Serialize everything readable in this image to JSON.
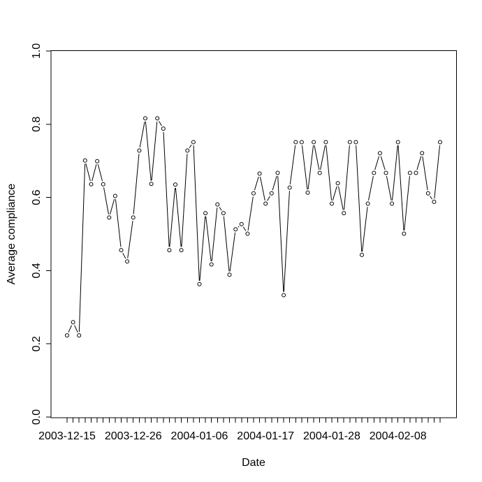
{
  "figure": {
    "background": "#ffffff",
    "foreground": "#000000",
    "title": ""
  },
  "chart_data": {
    "type": "line",
    "marker": "open-circle",
    "line_style": "segments-with-gaps-at-points",
    "title": "",
    "xlabel": "Date",
    "ylabel": "Average compliance",
    "grid": false,
    "legend": "none",
    "ylim": [
      0.0,
      1.0
    ],
    "yticks": [
      0.0,
      0.2,
      0.4,
      0.6,
      0.8,
      1.0
    ],
    "ytick_labels": [
      "0.0",
      "0.2",
      "0.4",
      "0.6",
      "0.8",
      "1.0"
    ],
    "x": [
      "2003-12-15",
      "2003-12-16",
      "2003-12-17",
      "2003-12-18",
      "2003-12-19",
      "2003-12-20",
      "2003-12-21",
      "2003-12-22",
      "2003-12-23",
      "2003-12-24",
      "2003-12-25",
      "2003-12-26",
      "2003-12-27",
      "2003-12-28",
      "2003-12-29",
      "2003-12-30",
      "2003-12-31",
      "2004-01-01",
      "2004-01-02",
      "2004-01-03",
      "2004-01-04",
      "2004-01-05",
      "2004-01-06",
      "2004-01-07",
      "2004-01-08",
      "2004-01-09",
      "2004-01-10",
      "2004-01-11",
      "2004-01-12",
      "2004-01-13",
      "2004-01-14",
      "2004-01-15",
      "2004-01-16",
      "2004-01-17",
      "2004-01-18",
      "2004-01-19",
      "2004-01-20",
      "2004-01-21",
      "2004-01-22",
      "2004-01-23",
      "2004-01-24",
      "2004-01-25",
      "2004-01-26",
      "2004-01-27",
      "2004-01-28",
      "2004-01-29",
      "2004-01-30",
      "2004-01-31",
      "2004-02-01",
      "2004-02-02",
      "2004-02-03",
      "2004-02-04",
      "2004-02-05",
      "2004-02-06",
      "2004-02-07",
      "2004-02-08",
      "2004-02-09",
      "2004-02-10",
      "2004-02-11",
      "2004-02-12",
      "2004-02-13",
      "2004-02-14",
      "2004-02-15"
    ],
    "xtick_labels": [
      {
        "index": 0,
        "label": "2003-12-15"
      },
      {
        "index": 11,
        "label": "2003-12-26"
      },
      {
        "index": 22,
        "label": "2004-01-06"
      },
      {
        "index": 33,
        "label": "2004-01-17"
      },
      {
        "index": 44,
        "label": "2004-01-28"
      },
      {
        "index": 55,
        "label": "2004-02-08"
      }
    ],
    "series": [
      {
        "name": "average-compliance",
        "values": [
          0.223,
          0.259,
          0.223,
          0.701,
          0.636,
          0.699,
          0.636,
          0.545,
          0.604,
          0.456,
          0.425,
          0.545,
          0.728,
          0.816,
          0.637,
          0.816,
          0.788,
          0.456,
          0.635,
          0.456,
          0.728,
          0.751,
          0.363,
          0.557,
          0.417,
          0.581,
          0.557,
          0.389,
          0.513,
          0.527,
          0.501,
          0.611,
          0.665,
          0.583,
          0.611,
          0.667,
          0.333,
          0.627,
          0.751,
          0.751,
          0.613,
          0.751,
          0.667,
          0.751,
          0.583,
          0.639,
          0.557,
          0.751,
          0.751,
          0.443,
          0.583,
          0.667,
          0.721,
          0.667,
          0.583,
          0.751,
          0.501,
          0.667,
          0.667,
          0.721,
          0.611,
          0.588,
          0.751
        ]
      }
    ]
  }
}
